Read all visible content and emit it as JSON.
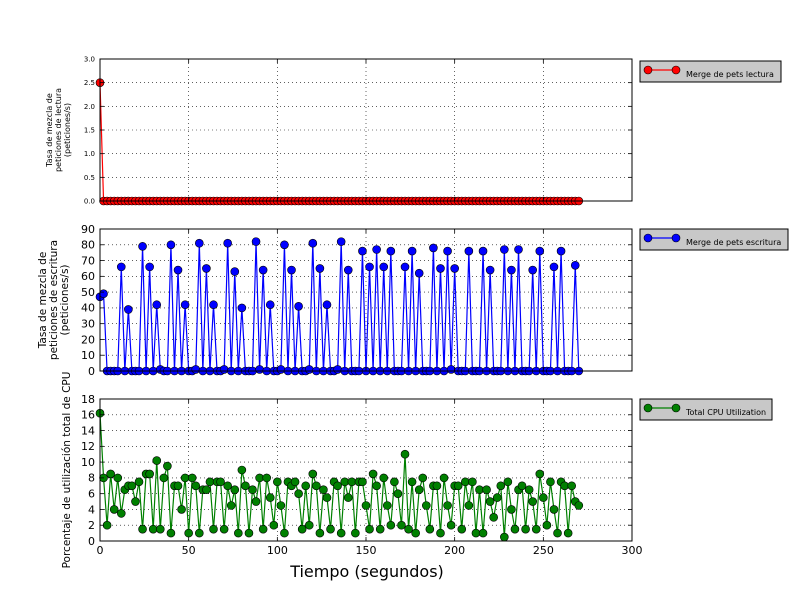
{
  "xlabel": "Tiempo (segundos)",
  "chart_data": [
    {
      "type": "line",
      "ylabel_lines": [
        "Tasa de mezcla de",
        "peticiones de lectura",
        "(peticiones/s)"
      ],
      "xlim": [
        0,
        300
      ],
      "ylim": [
        0,
        3.0
      ],
      "xticks": [
        0,
        50,
        100,
        150,
        200,
        250,
        300
      ],
      "xtick_labels": [
        "0",
        "50",
        "100",
        "150",
        "200",
        "250",
        "300"
      ],
      "yticks": [
        0,
        0.5,
        1.0,
        1.5,
        2.0,
        2.5,
        3.0
      ],
      "ytick_labels": [
        "0.0",
        "0.5",
        "1.0",
        "1.5",
        "2.0",
        "2.5",
        "3.0"
      ],
      "grid": true,
      "legend_position": "outside-right",
      "series": [
        {
          "name": "Merge de pets lectura",
          "color": "#ff0000",
          "x": [
            0,
            2,
            4,
            6,
            8,
            10,
            12,
            14,
            16,
            18,
            20,
            22,
            24,
            26,
            28,
            30,
            32,
            34,
            36,
            38,
            40,
            42,
            44,
            46,
            48,
            50,
            52,
            54,
            56,
            58,
            60,
            62,
            64,
            66,
            68,
            70,
            72,
            74,
            76,
            78,
            80,
            82,
            84,
            86,
            88,
            90,
            92,
            94,
            96,
            98,
            100,
            102,
            104,
            106,
            108,
            110,
            112,
            114,
            116,
            118,
            120,
            122,
            124,
            126,
            128,
            130,
            132,
            134,
            136,
            138,
            140,
            142,
            144,
            146,
            148,
            150,
            152,
            154,
            156,
            158,
            160,
            162,
            164,
            166,
            168,
            170,
            172,
            174,
            176,
            178,
            180,
            182,
            184,
            186,
            188,
            190,
            192,
            194,
            196,
            198,
            200,
            202,
            204,
            206,
            208,
            210,
            212,
            214,
            216,
            218,
            220,
            222,
            224,
            226,
            228,
            230,
            232,
            234,
            236,
            238,
            240,
            242,
            244,
            246,
            248,
            250,
            252,
            254,
            256,
            258,
            260,
            262,
            264,
            266,
            268,
            270
          ],
          "values": [
            2.5,
            0,
            0,
            0,
            0,
            0,
            0,
            0,
            0,
            0,
            0,
            0,
            0,
            0,
            0,
            0,
            0,
            0,
            0,
            0,
            0,
            0,
            0,
            0,
            0,
            0,
            0,
            0,
            0,
            0,
            0,
            0,
            0,
            0,
            0,
            0,
            0,
            0,
            0,
            0,
            0,
            0,
            0,
            0,
            0,
            0,
            0,
            0,
            0,
            0,
            0,
            0,
            0,
            0,
            0,
            0,
            0,
            0,
            0,
            0,
            0,
            0,
            0,
            0,
            0,
            0,
            0,
            0,
            0,
            0,
            0,
            0,
            0,
            0,
            0,
            0,
            0,
            0,
            0,
            0,
            0,
            0,
            0,
            0,
            0,
            0,
            0,
            0,
            0,
            0,
            0,
            0,
            0,
            0,
            0,
            0,
            0,
            0,
            0,
            0,
            0,
            0,
            0,
            0,
            0,
            0,
            0,
            0,
            0,
            0,
            0,
            0,
            0,
            0,
            0,
            0,
            0,
            0,
            0,
            0,
            0,
            0,
            0,
            0,
            0,
            0,
            0,
            0,
            0,
            0,
            0,
            0,
            0,
            0,
            0,
            0
          ]
        }
      ]
    },
    {
      "type": "line",
      "ylabel_lines": [
        "Tasa de mezcla de",
        "peticiones de escritura",
        "(peticiones/s)"
      ],
      "xlim": [
        0,
        300
      ],
      "ylim": [
        0,
        90
      ],
      "xticks": [
        0,
        50,
        100,
        150,
        200,
        250,
        300
      ],
      "xtick_labels": [
        "0",
        "50",
        "100",
        "150",
        "200",
        "250",
        "300"
      ],
      "yticks": [
        0,
        10,
        20,
        30,
        40,
        50,
        60,
        70,
        80,
        90
      ],
      "ytick_labels": [
        "0",
        "10",
        "20",
        "30",
        "40",
        "50",
        "60",
        "70",
        "80",
        "90"
      ],
      "grid": true,
      "legend_position": "outside-right",
      "series": [
        {
          "name": "Merge de pets escritura",
          "color": "#0000ff",
          "x": [
            0,
            2,
            4,
            6,
            8,
            10,
            12,
            14,
            16,
            18,
            20,
            22,
            24,
            26,
            28,
            30,
            32,
            34,
            36,
            38,
            40,
            42,
            44,
            46,
            48,
            50,
            52,
            54,
            56,
            58,
            60,
            62,
            64,
            66,
            68,
            70,
            72,
            74,
            76,
            78,
            80,
            82,
            84,
            86,
            88,
            90,
            92,
            94,
            96,
            98,
            100,
            102,
            104,
            106,
            108,
            110,
            112,
            114,
            116,
            118,
            120,
            122,
            124,
            126,
            128,
            130,
            132,
            134,
            136,
            138,
            140,
            142,
            144,
            146,
            148,
            150,
            152,
            154,
            156,
            158,
            160,
            162,
            164,
            166,
            168,
            170,
            172,
            174,
            176,
            178,
            180,
            182,
            184,
            186,
            188,
            190,
            192,
            194,
            196,
            198,
            200,
            202,
            204,
            206,
            208,
            210,
            212,
            214,
            216,
            218,
            220,
            222,
            224,
            226,
            228,
            230,
            232,
            234,
            236,
            238,
            240,
            242,
            244,
            246,
            248,
            250,
            252,
            254,
            256,
            258,
            260,
            262,
            264,
            266,
            268,
            270
          ],
          "values": [
            47,
            49,
            0,
            0,
            0,
            0,
            66,
            0,
            39,
            0,
            0,
            0,
            79,
            0,
            66,
            0,
            42,
            1,
            0,
            0,
            80,
            0,
            64,
            0,
            42,
            0,
            0,
            1,
            81,
            0,
            65,
            0,
            42,
            0,
            0,
            1,
            81,
            0,
            63,
            0,
            40,
            0,
            0,
            0,
            82,
            1,
            64,
            0,
            42,
            0,
            0,
            1,
            80,
            0,
            64,
            0,
            41,
            0,
            0,
            1,
            81,
            0,
            65,
            0,
            42,
            0,
            0,
            1,
            82,
            0,
            64,
            0,
            0,
            0,
            76,
            0,
            66,
            0,
            77,
            0,
            66,
            0,
            76,
            0,
            0,
            0,
            66,
            0,
            76,
            0,
            62,
            0,
            0,
            0,
            78,
            0,
            65,
            0,
            76,
            1,
            65,
            0,
            0,
            0,
            76,
            0,
            0,
            0,
            76,
            0,
            64,
            0,
            0,
            0,
            77,
            0,
            64,
            0,
            77,
            0,
            0,
            0,
            64,
            0,
            76,
            0,
            0,
            0,
            66,
            0,
            76,
            0,
            0,
            0,
            67,
            0
          ]
        }
      ]
    },
    {
      "type": "line",
      "ylabel_lines": [
        "Porcentaje de utilización total de CPU"
      ],
      "xlim": [
        0,
        300
      ],
      "ylim": [
        0,
        18
      ],
      "xticks": [
        0,
        50,
        100,
        150,
        200,
        250,
        300
      ],
      "xtick_labels": [
        "0",
        "50",
        "100",
        "150",
        "200",
        "250",
        "300"
      ],
      "yticks": [
        0,
        2,
        4,
        6,
        8,
        10,
        12,
        14,
        16,
        18
      ],
      "ytick_labels": [
        "0",
        "2",
        "4",
        "6",
        "8",
        "10",
        "12",
        "14",
        "16",
        "18"
      ],
      "grid": true,
      "legend_position": "outside-right",
      "series": [
        {
          "name": "Total CPU Utilization",
          "color": "#008000",
          "x": [
            0,
            2,
            4,
            6,
            8,
            10,
            12,
            14,
            16,
            18,
            20,
            22,
            24,
            26,
            28,
            30,
            32,
            34,
            36,
            38,
            40,
            42,
            44,
            46,
            48,
            50,
            52,
            54,
            56,
            58,
            60,
            62,
            64,
            66,
            68,
            70,
            72,
            74,
            76,
            78,
            80,
            82,
            84,
            86,
            88,
            90,
            92,
            94,
            96,
            98,
            100,
            102,
            104,
            106,
            108,
            110,
            112,
            114,
            116,
            118,
            120,
            122,
            124,
            126,
            128,
            130,
            132,
            134,
            136,
            138,
            140,
            142,
            144,
            146,
            148,
            150,
            152,
            154,
            156,
            158,
            160,
            162,
            164,
            166,
            168,
            170,
            172,
            174,
            176,
            178,
            180,
            182,
            184,
            186,
            188,
            190,
            192,
            194,
            196,
            198,
            200,
            202,
            204,
            206,
            208,
            210,
            212,
            214,
            216,
            218,
            220,
            222,
            224,
            226,
            228,
            230,
            232,
            234,
            236,
            238,
            240,
            242,
            244,
            246,
            248,
            250,
            252,
            254,
            256,
            258,
            260,
            262,
            264,
            266,
            268,
            270
          ],
          "values": [
            16.2,
            8,
            2,
            8.5,
            4,
            8,
            3.5,
            6.5,
            7,
            7,
            5,
            7.5,
            1.5,
            8.5,
            8.5,
            1.5,
            10.2,
            1.5,
            8,
            9.5,
            1,
            7,
            7,
            4,
            8,
            1,
            8,
            7,
            1,
            6.5,
            6.5,
            7.5,
            1.5,
            7.5,
            7.5,
            1.5,
            7,
            4.5,
            6.5,
            1,
            9,
            7,
            1,
            6.5,
            5,
            8,
            1.5,
            8,
            5.5,
            2,
            7.5,
            4.5,
            1,
            7.5,
            7,
            7.5,
            6,
            1.5,
            7,
            2,
            8.5,
            7,
            1,
            6.5,
            5.5,
            1.5,
            7.5,
            7,
            1,
            7.5,
            5.5,
            7.5,
            1,
            7.5,
            7.5,
            4.5,
            1.5,
            8.5,
            7,
            1.5,
            8,
            4.5,
            2,
            7.5,
            6,
            2,
            11,
            1.5,
            7.5,
            1,
            6.5,
            8,
            4.5,
            1.5,
            7,
            7,
            1,
            8,
            4.5,
            2,
            7,
            7,
            1.5,
            7.5,
            4.5,
            7.5,
            1,
            6.5,
            1,
            6.5,
            5,
            3,
            5.5,
            7,
            0.5,
            7.5,
            4,
            1.5,
            6.5,
            7,
            1.5,
            6.5,
            5,
            1.5,
            8.5,
            5.5,
            2,
            7.5,
            4,
            1,
            7.5,
            7,
            1,
            7,
            5,
            4.5
          ]
        }
      ]
    }
  ]
}
